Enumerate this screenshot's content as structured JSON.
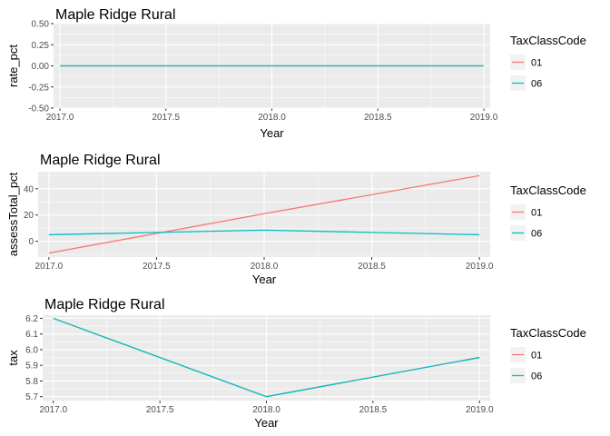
{
  "legend": {
    "title": "TaxClassCode",
    "entries": [
      {
        "label": "01",
        "color": "#F8766D"
      },
      {
        "label": "06",
        "color": "#00BFC4"
      }
    ]
  },
  "chart_data": [
    {
      "type": "line",
      "title": "Maple Ridge Rural",
      "xlabel": "Year",
      "ylabel": "rate_pct",
      "x": [
        2017,
        2018,
        2019
      ],
      "xlim": [
        2016.97,
        2019.03
      ],
      "xticks": [
        2017.0,
        2017.5,
        2018.0,
        2018.5,
        2019.0
      ],
      "xtick_labels": [
        "2017.0",
        "2017.5",
        "2018.0",
        "2018.5",
        "2019.0"
      ],
      "ylim": [
        -0.5,
        0.5
      ],
      "yticks": [
        -0.5,
        -0.25,
        0.0,
        0.25,
        0.5
      ],
      "ytick_labels": [
        "-0.50",
        "-0.25",
        "0.00",
        "0.25",
        "0.50"
      ],
      "series": [
        {
          "name": "01",
          "color": "#F8766D",
          "values": [
            0,
            0,
            0
          ]
        },
        {
          "name": "06",
          "color": "#00BFC4",
          "values": [
            0,
            0,
            0
          ]
        }
      ],
      "grid": true,
      "legend_position": "right"
    },
    {
      "type": "line",
      "title": "Maple Ridge Rural",
      "xlabel": "Year",
      "ylabel": "assessTotal_pct",
      "x": [
        2017,
        2018,
        2019
      ],
      "xlim": [
        2016.95,
        2019.05
      ],
      "xticks": [
        2017.0,
        2017.5,
        2018.0,
        2018.5,
        2019.0
      ],
      "xtick_labels": [
        "2017.0",
        "2017.5",
        "2018.0",
        "2018.5",
        "2019.0"
      ],
      "ylim": [
        -12,
        53
      ],
      "yticks": [
        0,
        20,
        40
      ],
      "ytick_labels": [
        "0",
        "20",
        "40"
      ],
      "series": [
        {
          "name": "01",
          "color": "#F8766D",
          "values": [
            -9,
            21,
            50
          ]
        },
        {
          "name": "06",
          "color": "#00BFC4",
          "values": [
            5,
            8.5,
            5
          ]
        }
      ],
      "grid": true,
      "legend_position": "right"
    },
    {
      "type": "line",
      "title": "Maple Ridge Rural",
      "xlabel": "Year",
      "ylabel": "tax",
      "x": [
        2017,
        2018,
        2019
      ],
      "xlim": [
        2016.95,
        2019.05
      ],
      "xticks": [
        2017.0,
        2017.5,
        2018.0,
        2018.5,
        2019.0
      ],
      "xtick_labels": [
        "2017.0",
        "2017.5",
        "2018.0",
        "2018.5",
        "2019.0"
      ],
      "ylim": [
        5.675,
        6.22
      ],
      "yticks": [
        5.7,
        5.8,
        5.9,
        6.0,
        6.1,
        6.2
      ],
      "ytick_labels": [
        "5.7",
        "5.8",
        "5.9",
        "6.0",
        "6.1",
        "6.2"
      ],
      "series": [
        {
          "name": "01",
          "color": "#F8766D",
          "values": [
            6.2,
            5.7,
            5.95
          ]
        },
        {
          "name": "06",
          "color": "#00BFC4",
          "values": [
            6.2,
            5.7,
            5.95
          ]
        }
      ],
      "grid": true,
      "legend_position": "right"
    }
  ]
}
